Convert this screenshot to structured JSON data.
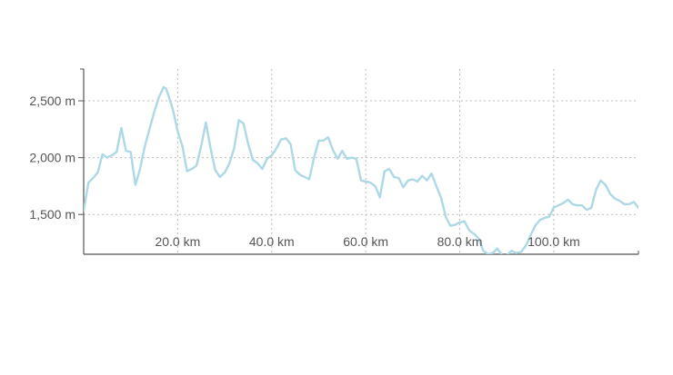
{
  "colors": {
    "line": "#add8e6",
    "grid": "#bbbbbb",
    "axis": "#555555",
    "text": "#555555",
    "background": "#ffffff"
  },
  "chart_data": {
    "type": "line",
    "title": "",
    "xlabel": "",
    "ylabel": "",
    "x_unit": "km",
    "y_unit": "m",
    "xlim": [
      0,
      118
    ],
    "ylim": [
      1150,
      2780
    ],
    "grid": true,
    "x_ticks": [
      20,
      40,
      60,
      80,
      100
    ],
    "x_tick_labels": [
      "20.0 km",
      "40.0 km",
      "60.0 km",
      "80.0 km",
      "100.0 km"
    ],
    "y_ticks": [
      1500,
      2000,
      2500
    ],
    "y_tick_labels": [
      "1,500 m",
      "2,000 m",
      "2,500 m"
    ],
    "series": [
      {
        "x": [
          0,
          1,
          2,
          3,
          4,
          5,
          6,
          7,
          8,
          9,
          10,
          11,
          12,
          13,
          14,
          15,
          16,
          17,
          17.5,
          18,
          19,
          20,
          21,
          22,
          23,
          24,
          25,
          26,
          27,
          28,
          29,
          30,
          31,
          32,
          33,
          34,
          35,
          36,
          37,
          38,
          39,
          40,
          41,
          42,
          43,
          44,
          45,
          46,
          47,
          48,
          49,
          50,
          51,
          52,
          53,
          54,
          55,
          56,
          57,
          58,
          59,
          60,
          61,
          62,
          63,
          64,
          65,
          66,
          67,
          68,
          69,
          70,
          71,
          72,
          73,
          74,
          75,
          76,
          77,
          78,
          79,
          80,
          81,
          82,
          83,
          84,
          85,
          86,
          87,
          88,
          89,
          90,
          91,
          92,
          93,
          94,
          95,
          96,
          97,
          98,
          99,
          100,
          101,
          102,
          103,
          104,
          105,
          106,
          107,
          108,
          109,
          110,
          111,
          112,
          113,
          114,
          115,
          116,
          117,
          118
        ],
        "y": [
          1530,
          1780,
          1820,
          1870,
          2030,
          2000,
          2020,
          2050,
          2260,
          2060,
          2050,
          1760,
          1900,
          2100,
          2250,
          2400,
          2530,
          2620,
          2610,
          2550,
          2420,
          2230,
          2100,
          1880,
          1900,
          1930,
          2100,
          2310,
          2080,
          1890,
          1830,
          1870,
          1950,
          2080,
          2330,
          2300,
          2120,
          1980,
          1950,
          1900,
          1990,
          2020,
          2080,
          2160,
          2170,
          2120,
          1890,
          1850,
          1830,
          1810,
          2000,
          2150,
          2150,
          2180,
          2070,
          1990,
          2060,
          1990,
          2000,
          1990,
          1800,
          1790,
          1780,
          1750,
          1650,
          1880,
          1900,
          1830,
          1820,
          1740,
          1800,
          1810,
          1790,
          1840,
          1800,
          1860,
          1750,
          1650,
          1480,
          1400,
          1410,
          1430,
          1440,
          1360,
          1330,
          1290,
          1180,
          1150,
          1160,
          1200,
          1140,
          1140,
          1180,
          1160,
          1170,
          1220,
          1310,
          1400,
          1450,
          1470,
          1480,
          1560,
          1580,
          1600,
          1630,
          1590,
          1580,
          1580,
          1540,
          1560,
          1720,
          1800,
          1760,
          1680,
          1640,
          1620,
          1590,
          1590,
          1610,
          1560
        ]
      }
    ]
  }
}
